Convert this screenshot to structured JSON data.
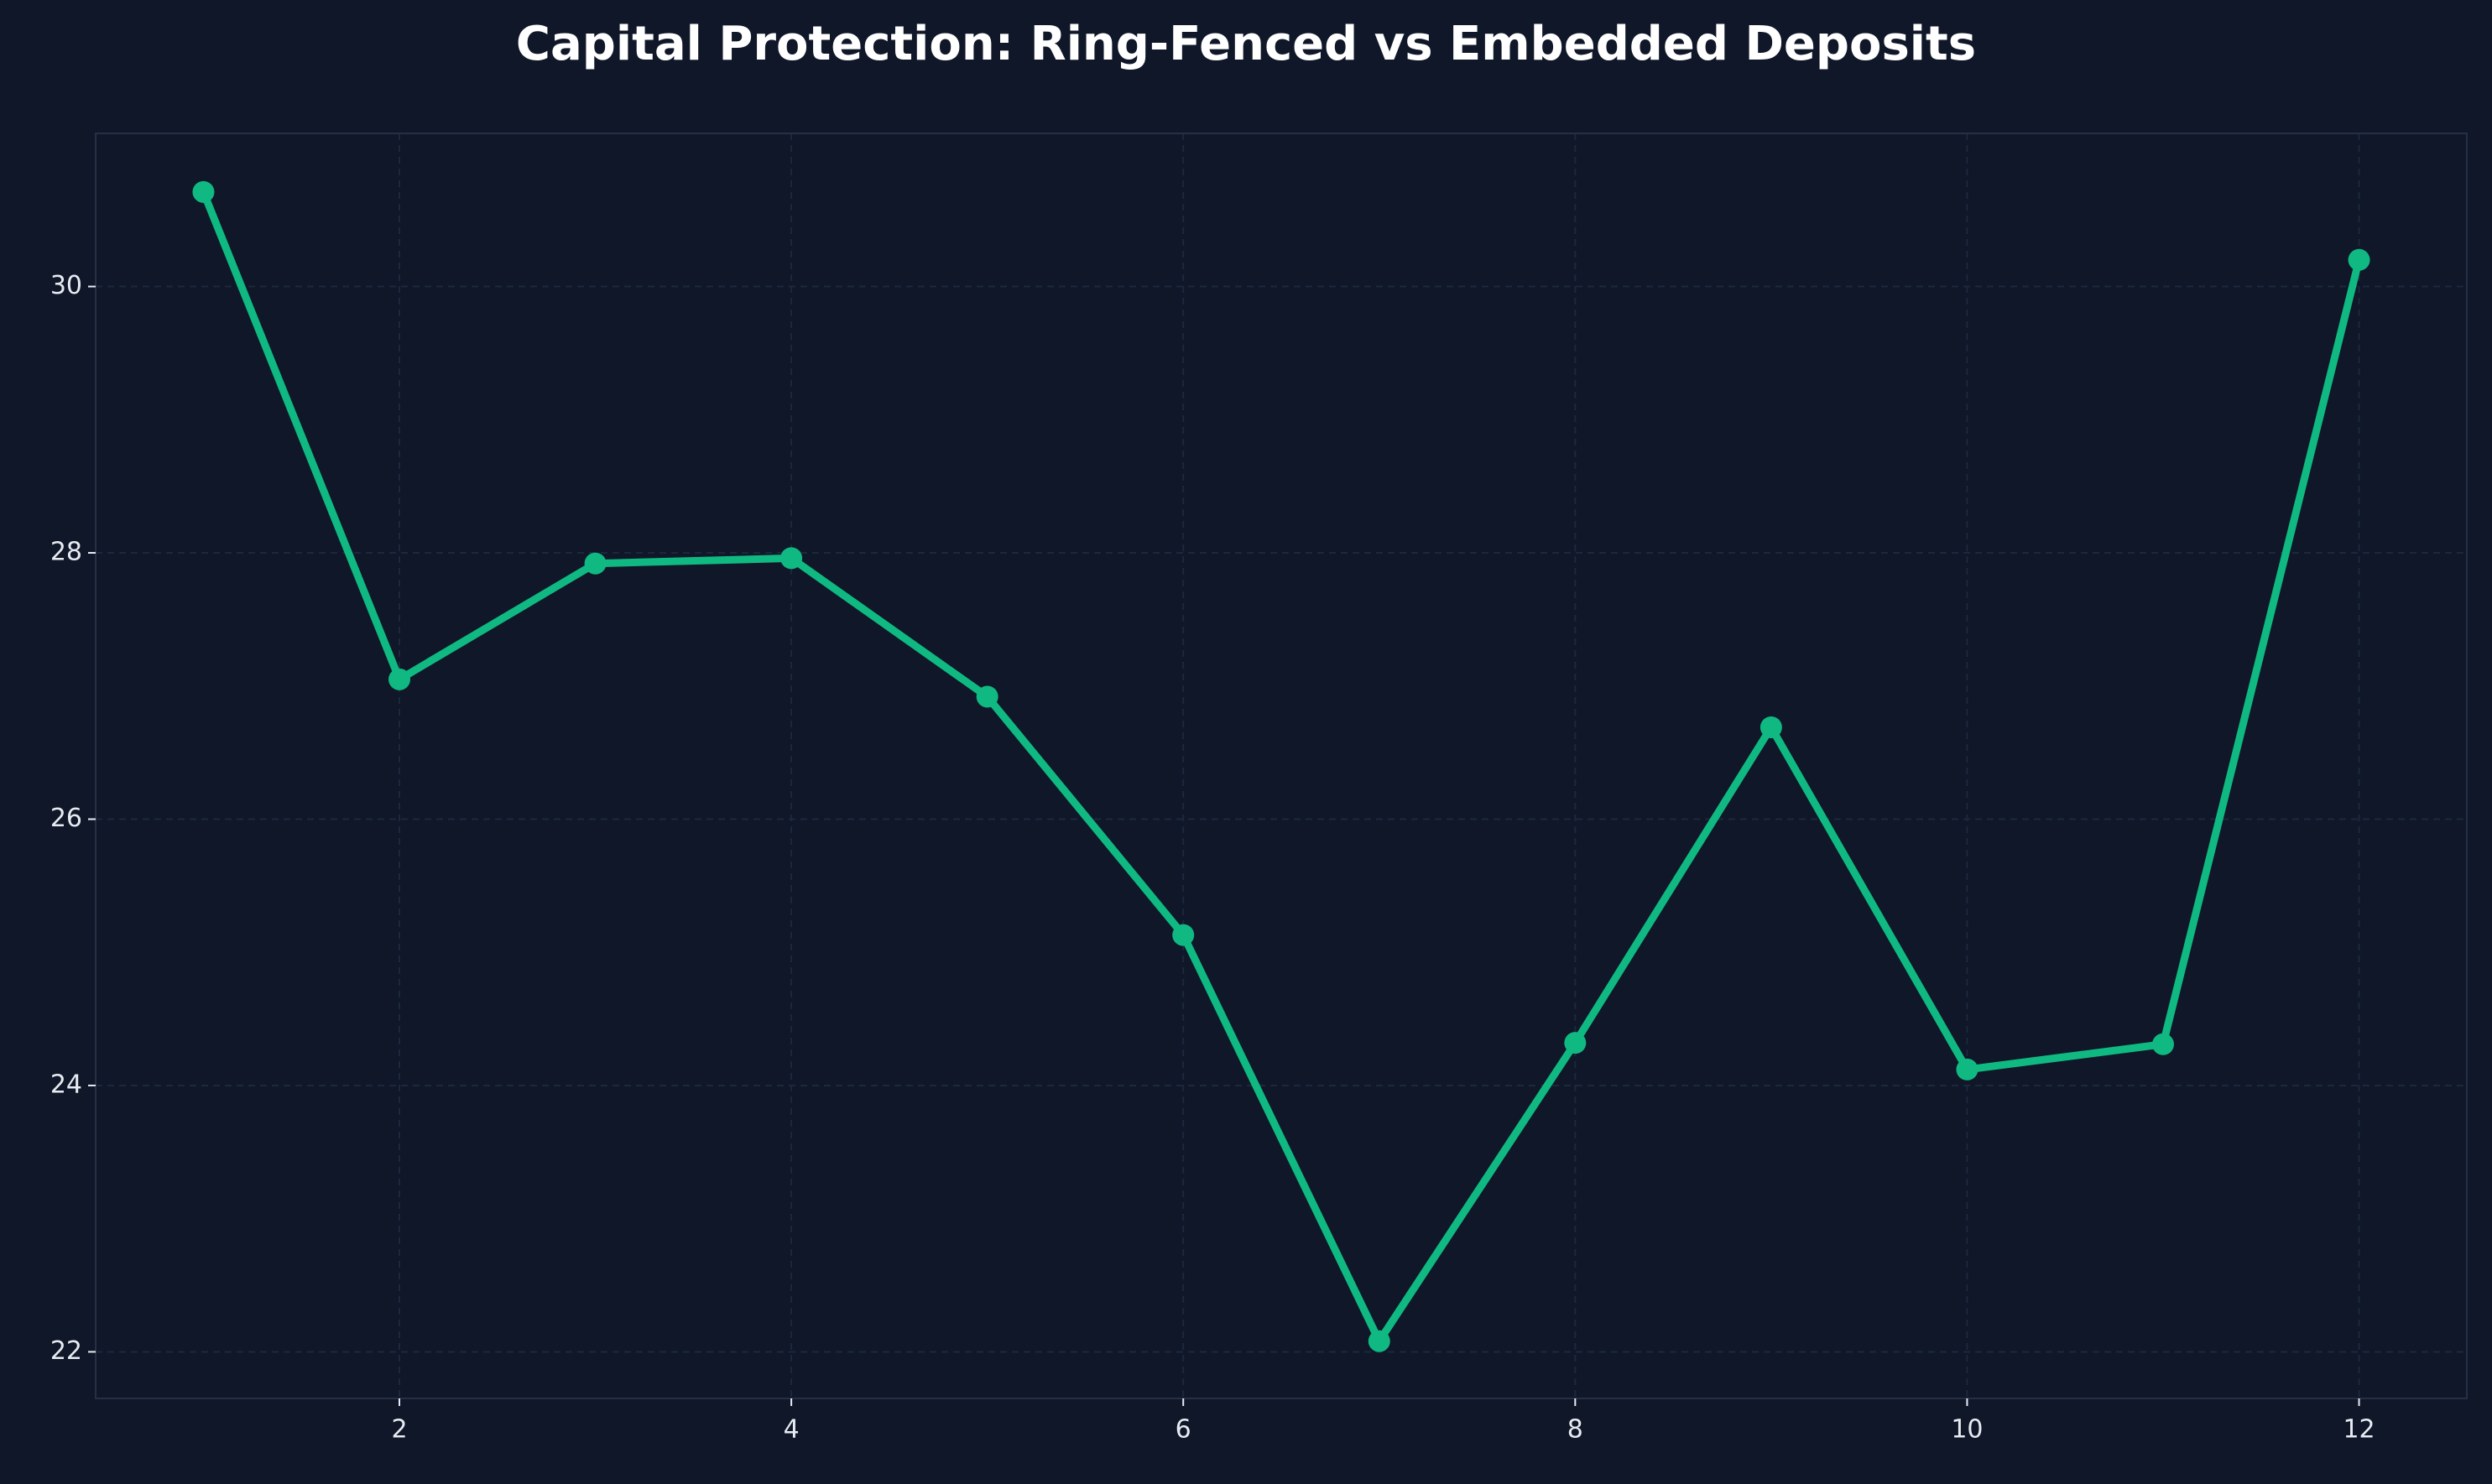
{
  "chart_data": {
    "type": "line",
    "title": "Capital Protection: Ring-Fenced vs Embedded Deposits",
    "x": [
      1,
      2,
      3,
      4,
      5,
      6,
      7,
      8,
      9,
      10,
      11,
      12
    ],
    "series": [
      {
        "color": "#10b981",
        "values": [
          30.71,
          27.05,
          27.92,
          27.96,
          26.92,
          25.13,
          22.08,
          24.32,
          26.69,
          24.12,
          24.31,
          30.2
        ]
      }
    ],
    "xlim": [
      0.45,
      12.55
    ],
    "ylim": [
      21.65,
      31.15
    ],
    "xticks": [
      2,
      4,
      6,
      8,
      10,
      12
    ],
    "yticks": [
      22,
      24,
      26,
      28,
      30
    ],
    "grid": true
  }
}
